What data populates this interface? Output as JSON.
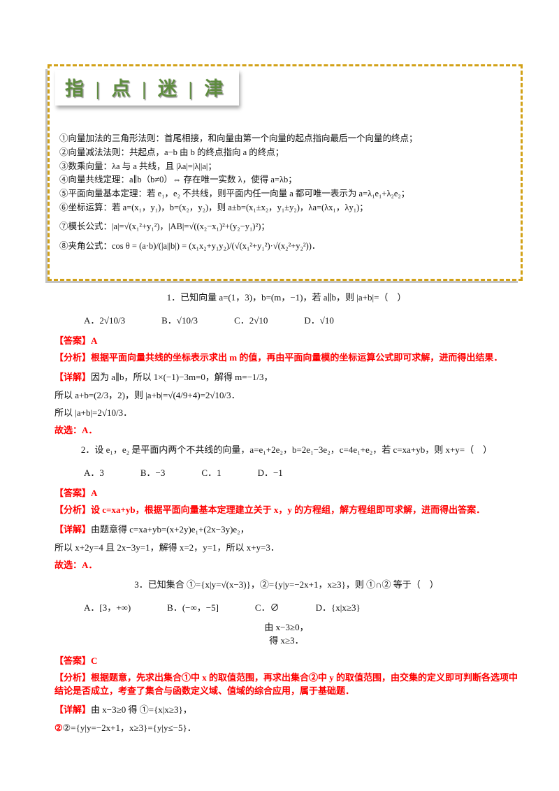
{
  "colors": {
    "accent_red": "#fe0000",
    "accent_green": "#5e8c3e",
    "border_gold": "#d2a117"
  },
  "tip_box": {
    "header": "指 | 点 | 迷 | 津",
    "items": [
      "①向量加法的三角形法则：首尾相接，和向量由第一个向量的起点指向最后一个向量的终点；",
      "②向量减法法则：共起点，a−b 由 b 的终点指向 a 的终点；",
      "③数乘向量：λa 与 a 共线，且 |λa|=|λ||a|；",
      "④向量共线定理：a∥b（b≠0）⇔ 存在唯一实数 λ，使得 a=λb；",
      "⑤平面向量基本定理：若 e₁，e₂ 不共线，则平面内任一向量 a 都可唯一表示为 a=λ₁e₁+λ₂e₂；",
      "⑥坐标运算：若 a=(x₁，y₁)，b=(x₂，y₂)，则 a±b=(x₁±x₂，y₁±y₂)，λa=(λx₁，λy₁)；"
    ],
    "formulas": [
      "⑦模长公式：|a|=√(x₁²+y₁²)，|AB|=√((x₂−x₁)²+(y₂−y₁)²)；",
      "⑧夹角公式：cos θ = (a·b)/(|a||b|) = (x₁x₂+y₁y₂)/(√(x₁²+y₁²)·√(x₂²+y₂²))．"
    ]
  },
  "questions": [
    {
      "stem": "1．已知向量 a=(1，3)，b=(m，−1)，若 a∥b，则 |a+b|=（　）",
      "options": [
        "A．2√10/3",
        "B．√10/3",
        "C．2√10",
        "D．√10"
      ],
      "answer_label": "【答案】",
      "answer": "A",
      "analysis_label": "【分析】",
      "analysis": "根据平面向量共线的坐标表示求出 m 的值，再由平面向量模的坐标运算公式即可求解，进而得出结果．",
      "detail_label": "【详解】",
      "detail": "因为 a∥b，所以 1×(−1)−3m=0，解得 m=−1/3，",
      "steps": [
        "所以 a+b=(2/3，2)，则 |a+b|=√(4/9+4)=2√10/3．",
        "所以 |a+b|=2√10/3．"
      ],
      "conclusion": "故选：A．"
    },
    {
      "stem": "2．设 e₁，e₂ 是平面内两个不共线的向量，a=e₁+2e₂，b=2e₁−3e₂，c=4e₁+e₂，若 c=xa+yb，则 x+y=（　）",
      "options": [
        "A．3",
        "B．−3",
        "C．1",
        "D．−1"
      ],
      "answer_label": "【答案】",
      "answer": "A",
      "analysis_label": "【分析】",
      "analysis": "设 c=xa+yb，根据平面向量基本定理建立关于 x，y 的方程组，解方程组即可求解，进而得出答案．",
      "detail_label": "【详解】",
      "detail": "由题意得 c=xa+yb=(x+2y)e₁+(2x−3y)e₂，",
      "steps": [
        "所以 x+2y=4 且 2x−3y=1，解得 x=2，y=1，所以 x+y=3．"
      ],
      "conclusion": "故选：A．"
    },
    {
      "stem": "3．已知集合 ①={x|y=√(x−3)}，②={y|y=−2x+1，x≥3}，则 ①∩② 等于（　）",
      "options": [
        "A．[3，+∞)",
        "B．(−∞，−5]",
        "C．∅",
        "D．{x|x≥3}"
      ],
      "formula_line1": "由 x−3≥0，",
      "formula_line2": "得 x≥3．",
      "answer_label": "【答案】",
      "answer": "C",
      "analysis_label": "【分析】",
      "analysis": "根据题意，先求出集合①中 x 的取值范围，再求出集合②中 y 的取值范围，由交集的定义即可判断各选项中结论是否成立，考查了集合与函数定义域、值域的综合应用，属于基础题．",
      "detail_label": "【详解】",
      "detail": "由 x−3≥0 得 ①={x|x≥3}，",
      "steps": [
        "②={y|y=−2x+1，x≥3}={y|y≤−5}．"
      ],
      "conclusion": ""
    }
  ]
}
